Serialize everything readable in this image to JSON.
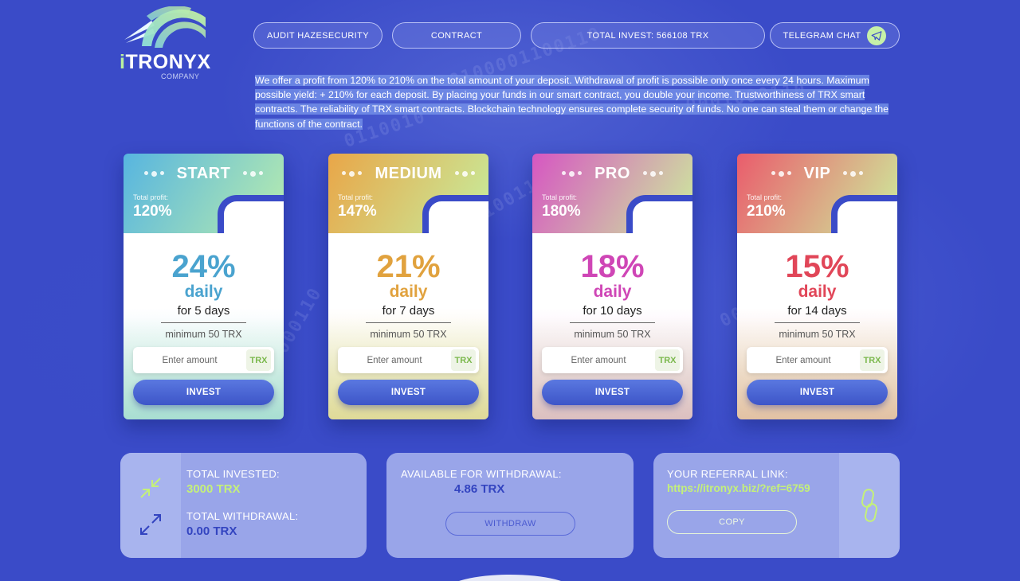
{
  "logo": {
    "brand_accent": "i",
    "brand_main": "TRONYX",
    "subtitle": "COMPANY"
  },
  "nav": {
    "audit_label": "AUDIT HAZESECURITY",
    "contract_label": "CONTRACT",
    "total_invest_label": "TOTAL INVEST: 566108 TRX",
    "telegram_label": "TELEGRAM CHAT",
    "telegram_icon": "paper-plane-icon"
  },
  "intro": {
    "text": "We offer a profit from 120% to 210% on the total amount of your deposit. Withdrawal of profit is possible only once every 24 hours. Maximum possible yield: + 210% for each deposit. By placing your funds in our smart contract, you double your income. Trustworthiness of TRX smart contracts. The reliability of TRX smart contracts. Blockchain technology ensures complete security of funds. No one can steal them or change the functions of the contract."
  },
  "plans": [
    {
      "name": "START",
      "total_profit_label": "Total profit:",
      "total_profit": "120%",
      "daily_pct": "24%",
      "daily_label": "daily",
      "duration": "for 5 days",
      "minimum": "minimum 50 TRX",
      "placeholder": "Enter amount",
      "currency": "TRX",
      "button": "INVEST",
      "color_from": "#57b5e0",
      "color_to": "#b8ecae",
      "accent": "#4aa3cf"
    },
    {
      "name": "MEDIUM",
      "total_profit_label": "Total profit:",
      "total_profit": "147%",
      "daily_pct": "21%",
      "daily_label": "daily",
      "duration": "for 7 days",
      "minimum": "minimum 50 TRX",
      "placeholder": "Enter amount",
      "currency": "TRX",
      "button": "INVEST",
      "color_from": "#e9a648",
      "color_to": "#c6ee9e",
      "accent": "#e1a23e"
    },
    {
      "name": "PRO",
      "total_profit_label": "Total profit:",
      "total_profit": "180%",
      "daily_pct": "18%",
      "daily_label": "daily",
      "duration": "for 10 days",
      "minimum": "minimum 50 TRX",
      "placeholder": "Enter amount",
      "currency": "TRX",
      "button": "INVEST",
      "color_from": "#d656c2",
      "color_to": "#cdee9c",
      "accent": "#cf46b6"
    },
    {
      "name": "VIP",
      "total_profit_label": "Total profit:",
      "total_profit": "210%",
      "daily_pct": "15%",
      "daily_label": "daily",
      "duration": "for 14 days",
      "minimum": "minimum 50 TRX",
      "placeholder": "Enter amount",
      "currency": "TRX",
      "button": "INVEST",
      "color_from": "#ea5c6c",
      "color_to": "#cdee9c",
      "accent": "#e14658"
    }
  ],
  "stats": {
    "total_invested_label": "TOTAL INVESTED:",
    "total_invested_value": "3000 TRX",
    "total_withdrawal_label": "TOTAL WITHDRAWAL:",
    "total_withdrawal_value": "0.00 TRX",
    "invest_icon": "arrows-inward-icon",
    "withdraw_icon": "arrows-outward-icon"
  },
  "withdraw": {
    "label": "AVAILABLE FOR WITHDRAWAL:",
    "value": "4.86 TRX",
    "button": "WITHDRAW"
  },
  "referral": {
    "label": "YOUR REFERRAL LINK:",
    "link": "https://itronyx.biz/?ref=6759",
    "button": "COPY",
    "icon": "chain-link-icon"
  },
  "colors": {
    "background": "#3a4bc8",
    "green_value": "#c4f07a",
    "blue_value": "#3344c0"
  }
}
